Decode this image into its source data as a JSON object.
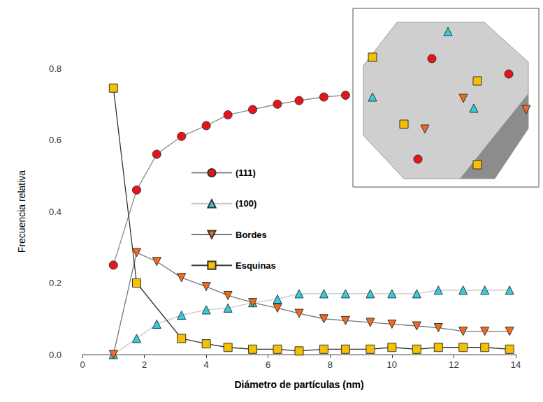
{
  "chart_data": {
    "type": "line",
    "x_label": "Diámetro de partículas (nm)",
    "y_label": "Frecuencia relativa",
    "xlim": [
      0,
      14
    ],
    "xticks": [
      0,
      2,
      4,
      6,
      8,
      10,
      12,
      14
    ],
    "ylim": [
      0,
      0.8
    ],
    "yticks": [
      {
        "value": 0,
        "label": "0.0"
      },
      0.2,
      0.4,
      0.6,
      0.8
    ],
    "grid": false,
    "legend": "center",
    "series": [
      {
        "name": "(111)",
        "color": "#e8141b",
        "marker": "circle",
        "x": [
          1.0,
          1.75,
          2.4,
          3.2,
          4.0,
          4.7,
          5.5,
          6.3,
          7.0,
          7.8,
          8.5
        ],
        "values": [
          0.25,
          0.46,
          0.56,
          0.61,
          0.64,
          0.67,
          0.685,
          0.7,
          0.71,
          0.72,
          0.725
        ]
      },
      {
        "name": "(100)",
        "color": "#33ccdd",
        "marker": "triangle",
        "x": [
          1.0,
          1.75,
          2.4,
          3.2,
          4.0,
          4.7,
          5.5,
          6.3,
          7.0,
          7.8,
          8.5,
          9.3,
          10.0,
          10.8,
          11.5,
          12.3,
          13.0,
          13.8
        ],
        "values": [
          0.0,
          0.045,
          0.085,
          0.11,
          0.125,
          0.13,
          0.145,
          0.155,
          0.17,
          0.17,
          0.17,
          0.17,
          0.17,
          0.17,
          0.18,
          0.18,
          0.18,
          0.18
        ]
      },
      {
        "name": "Bordes",
        "color": "#f26b1d",
        "marker": "triangle-down",
        "x": [
          1.0,
          1.75,
          2.4,
          3.2,
          4.0,
          4.7,
          5.5,
          6.3,
          7.0,
          7.8,
          8.5,
          9.3,
          10.0,
          10.8,
          11.5,
          12.3,
          13.0,
          13.8
        ],
        "values": [
          0.0,
          0.285,
          0.26,
          0.215,
          0.19,
          0.165,
          0.145,
          0.13,
          0.115,
          0.1,
          0.095,
          0.09,
          0.085,
          0.08,
          0.075,
          0.065,
          0.065,
          0.065
        ]
      },
      {
        "name": "Esquinas",
        "color": "#f5c000",
        "marker": "square",
        "x": [
          1.0,
          1.75,
          3.2,
          4.0,
          4.7,
          5.5,
          6.3,
          7.0,
          7.8,
          8.5,
          9.3,
          10.0,
          10.8,
          11.5,
          12.3,
          13.0,
          13.8
        ],
        "values": [
          0.745,
          0.2,
          0.045,
          0.03,
          0.02,
          0.015,
          0.015,
          0.01,
          0.015,
          0.015,
          0.015,
          0.02,
          0.015,
          0.02,
          0.02,
          0.02,
          0.015
        ]
      }
    ]
  }
}
